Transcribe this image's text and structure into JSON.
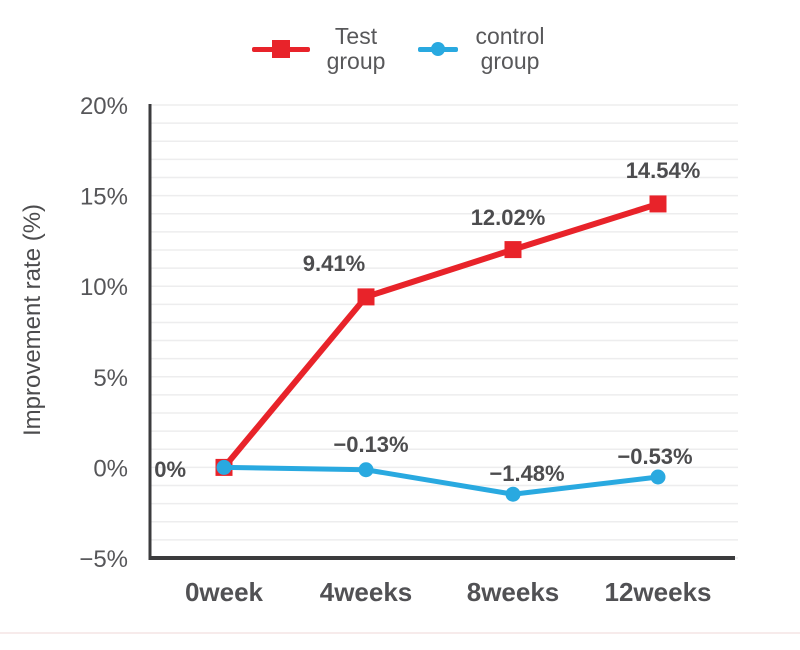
{
  "chart_data": {
    "type": "line",
    "title": "",
    "xlabel": "",
    "ylabel": "Improvement rate (%)",
    "x_categories": [
      "0week",
      "4weeks",
      "8weeks",
      "12weeks"
    ],
    "ylim": [
      -5,
      20
    ],
    "yticks": [
      20,
      15,
      10,
      5,
      0,
      -5
    ],
    "ytick_labels": [
      "20%",
      "15%",
      "10%",
      "5%",
      "0%",
      "−5%"
    ],
    "grid": "horizontal minor gridlines every 1%",
    "legend_position": "top-center",
    "series": [
      {
        "name": "Test group",
        "color": "#e8232a",
        "marker": "square",
        "values": [
          0,
          9.41,
          12.02,
          14.54
        ],
        "point_labels": [
          "0%",
          "9.41%",
          "12.02%",
          "14.54%"
        ]
      },
      {
        "name": "control group",
        "color": "#29a9e0",
        "marker": "circle",
        "values": [
          0,
          -0.13,
          -1.48,
          -0.53
        ],
        "point_labels": [
          "",
          "−0.13%",
          "−1.48%",
          "−0.53%"
        ]
      }
    ]
  },
  "colors": {
    "text": "#565659",
    "axis": "#3b3b3d",
    "grid": "#ededee",
    "bottom_divider": "#f7ebeb"
  }
}
